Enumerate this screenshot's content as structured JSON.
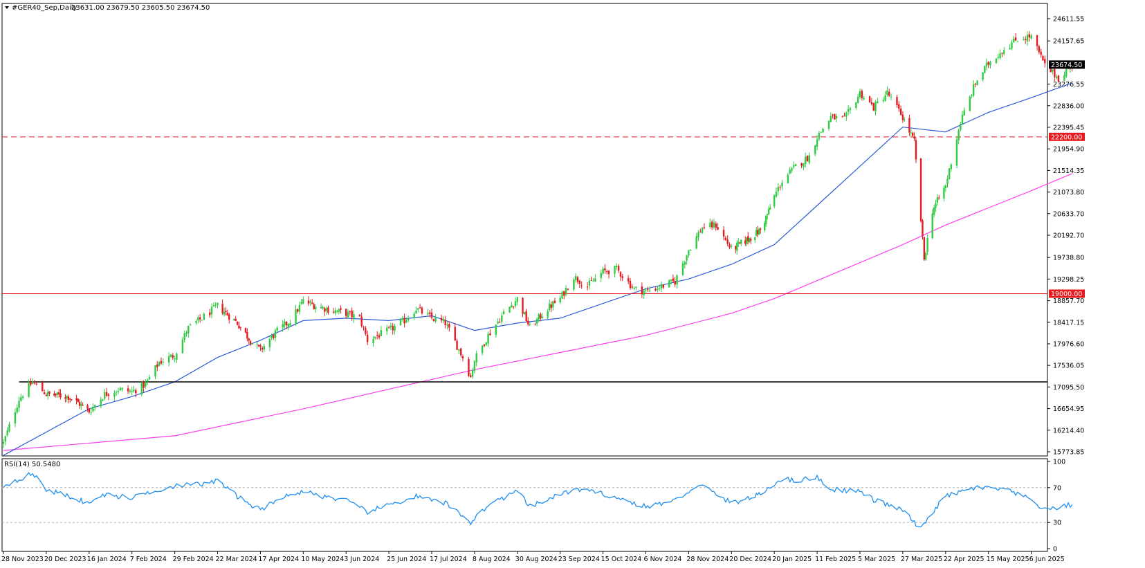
{
  "header": {
    "symbol_title": "#GER40_Sep,Daily",
    "ohlc": "23631.00 23679.50 23605.50 23674.50",
    "menu_icon": "triangle-down-icon"
  },
  "rsi_panel": {
    "label": "RSI(14) 50.5480"
  },
  "price_tags": {
    "last_price": "23674.50",
    "level_22200": "22200.00",
    "level_19000": "19000.00"
  },
  "colors": {
    "bull_candle": "#2ecc40",
    "bear_candle": "#e8191f",
    "ma_fast": "#2d5bd8",
    "ma_slow": "#ff3cf0",
    "rsi_line": "#1e8ff0",
    "hline_red": "#e8191f",
    "hline_black": "#000000",
    "last_tag_bg": "#000000",
    "level_tag_bg": "#e8191f"
  },
  "chart_data": [
    {
      "type": "candlestick",
      "title": "#GER40_Sep,Daily",
      "x_tick_labels": [
        "28 Nov 2023",
        "20 Dec 2023",
        "16 Jan 2024",
        "7 Feb 2024",
        "29 Feb 2024",
        "22 Mar 2024",
        "17 Apr 2024",
        "10 May 2024",
        "3 Jun 2024",
        "25 Jun 2024",
        "17 Jul 2024",
        "8 Aug 2024",
        "30 Aug 2024",
        "23 Sep 2024",
        "15 Oct 2024",
        "6 Nov 2024",
        "28 Nov 2024",
        "20 Dec 2024",
        "20 Jan 2025",
        "11 Feb 2025",
        "5 Mar 2025",
        "27 Mar 2025",
        "22 Apr 2025",
        "15 May 2025",
        "6 Jun 2025"
      ],
      "y_tick_labels": [
        "24611.55",
        "24157.65",
        "23276.55",
        "22836.00",
        "22395.45",
        "21954.90",
        "21514.35",
        "21073.80",
        "20633.70",
        "20192.70",
        "19738.80",
        "19298.25",
        "18857.70",
        "18417.15",
        "17976.60",
        "17536.05",
        "17095.50",
        "16654.95",
        "16214.40",
        "15773.85"
      ],
      "ylim": [
        15773.85,
        24850
      ],
      "close_path": [
        [
          "28 Nov 2023",
          15950
        ],
        [
          "6 Dec 2023",
          16850
        ],
        [
          "13 Dec 2023",
          17200
        ],
        [
          "20 Dec 2023",
          16950
        ],
        [
          "3 Jan 2024",
          16900
        ],
        [
          "10 Jan 2024",
          16750
        ],
        [
          "16 Jan 2024",
          16600
        ],
        [
          "24 Jan 2024",
          16950
        ],
        [
          "31 Jan 2024",
          17050
        ],
        [
          "7 Feb 2024",
          17000
        ],
        [
          "14 Feb 2024",
          17150
        ],
        [
          "21 Feb 2024",
          17600
        ],
        [
          "29 Feb 2024",
          17750
        ],
        [
          "7 Mar 2024",
          18300
        ],
        [
          "14 Mar 2024",
          18500
        ],
        [
          "22 Mar 2024",
          18750
        ],
        [
          "3 Apr 2024",
          18400
        ],
        [
          "12 Apr 2024",
          18000
        ],
        [
          "17 Apr 2024",
          17850
        ],
        [
          "25 Apr 2024",
          18200
        ],
        [
          "3 May 2024",
          18450
        ],
        [
          "10 May 2024",
          18850
        ],
        [
          "17 May 2024",
          18750
        ],
        [
          "27 May 2024",
          18650
        ],
        [
          "3 Jun 2024",
          18600
        ],
        [
          "10 Jun 2024",
          18500
        ],
        [
          "14 Jun 2024",
          18050
        ],
        [
          "25 Jun 2024",
          18250
        ],
        [
          "3 Jul 2024",
          18450
        ],
        [
          "9 Jul 2024",
          18700
        ],
        [
          "17 Jul 2024",
          18500
        ],
        [
          "24 Jul 2024",
          18400
        ],
        [
          "2 Aug 2024",
          17700
        ],
        [
          "6 Aug 2024",
          17300
        ],
        [
          "8 Aug 2024",
          17650
        ],
        [
          "15 Aug 2024",
          18150
        ],
        [
          "23 Aug 2024",
          18600
        ],
        [
          "30 Aug 2024",
          18900
        ],
        [
          "6 Sep 2024",
          18300
        ],
        [
          "16 Sep 2024",
          18700
        ],
        [
          "23 Sep 2024",
          18900
        ],
        [
          "30 Sep 2024",
          19350
        ],
        [
          "7 Oct 2024",
          19150
        ],
        [
          "15 Oct 2024",
          19450
        ],
        [
          "22 Oct 2024",
          19500
        ],
        [
          "31 Oct 2024",
          19100
        ],
        [
          "6 Nov 2024",
          19050
        ],
        [
          "14 Nov 2024",
          19150
        ],
        [
          "21 Nov 2024",
          19250
        ],
        [
          "28 Nov 2024",
          19900
        ],
        [
          "5 Dec 2024",
          20350
        ],
        [
          "12 Dec 2024",
          20400
        ],
        [
          "20 Dec 2024",
          19900
        ],
        [
          "3 Jan 2025",
          20150
        ],
        [
          "10 Jan 2025",
          20300
        ],
        [
          "17 Jan 2025",
          20750
        ],
        [
          "24 Jan 2025",
          21300
        ],
        [
          "31 Jan 2025",
          21600
        ],
        [
          "7 Feb 2025",
          21800
        ],
        [
          "11 Feb 2025",
          22200
        ],
        [
          "18 Feb 2025",
          22600
        ],
        [
          "25 Feb 2025",
          22550
        ],
        [
          "5 Mar 2025",
          23100
        ],
        [
          "12 Mar 2025",
          22800
        ],
        [
          "19 Mar 2025",
          23100
        ],
        [
          "27 Mar 2025",
          22600
        ],
        [
          "3 Apr 2025",
          22100
        ],
        [
          "7 Apr 2025",
          20500
        ],
        [
          "9 Apr 2025",
          19700
        ],
        [
          "14 Apr 2025",
          20700
        ],
        [
          "22 Apr 2025",
          21200
        ],
        [
          "30 Apr 2025",
          22500
        ],
        [
          "8 May 2025",
          23300
        ],
        [
          "15 May 2025",
          23700
        ],
        [
          "23 May 2025",
          24000
        ],
        [
          "30 May 2025",
          24200
        ],
        [
          "6 Jun 2025",
          24250
        ],
        [
          "13 Jun 2025",
          23650
        ],
        [
          "20 Jun 2025",
          23400
        ],
        [
          "27 Jun 2025",
          23674.5
        ]
      ],
      "ma_fast_path": [
        [
          "28 Nov 2023",
          15700
        ],
        [
          "16 Jan 2024",
          16650
        ],
        [
          "7 Feb 2024",
          16900
        ],
        [
          "29 Feb 2024",
          17200
        ],
        [
          "22 Mar 2024",
          17700
        ],
        [
          "17 Apr 2024",
          18050
        ],
        [
          "10 May 2024",
          18450
        ],
        [
          "3 Jun 2024",
          18500
        ],
        [
          "25 Jun 2024",
          18450
        ],
        [
          "17 Jul 2024",
          18550
        ],
        [
          "8 Aug 2024",
          18250
        ],
        [
          "30 Aug 2024",
          18400
        ],
        [
          "23 Sep 2024",
          18500
        ],
        [
          "15 Oct 2024",
          18800
        ],
        [
          "6 Nov 2024",
          19100
        ],
        [
          "28 Nov 2024",
          19300
        ],
        [
          "20 Dec 2024",
          19600
        ],
        [
          "20 Jan 2025",
          20000
        ],
        [
          "11 Feb 2025",
          20800
        ],
        [
          "5 Mar 2025",
          21600
        ],
        [
          "27 Mar 2025",
          22400
        ],
        [
          "22 Apr 2025",
          22300
        ],
        [
          "15 May 2025",
          22700
        ],
        [
          "6 Jun 2025",
          23000
        ],
        [
          "27 Jun 2025",
          23300
        ]
      ],
      "ma_slow_path": [
        [
          "28 Nov 2023",
          15800
        ],
        [
          "16 Jan 2024",
          15950
        ],
        [
          "29 Feb 2024",
          16100
        ],
        [
          "10 May 2024",
          16650
        ],
        [
          "25 Jun 2024",
          17050
        ],
        [
          "8 Aug 2024",
          17450
        ],
        [
          "23 Sep 2024",
          17800
        ],
        [
          "6 Nov 2024",
          18150
        ],
        [
          "20 Dec 2024",
          18600
        ],
        [
          "20 Jan 2025",
          18900
        ],
        [
          "27 Mar 2025",
          20000
        ],
        [
          "22 Apr 2025",
          20400
        ],
        [
          "15 May 2025",
          20750
        ],
        [
          "6 Jun 2025",
          21100
        ],
        [
          "27 Jun 2025",
          21450
        ]
      ],
      "horizontal_levels": [
        {
          "value": 22200.0,
          "style": "dashed",
          "color": "red"
        },
        {
          "value": 19000.0,
          "style": "solid",
          "color": "red"
        },
        {
          "value": 17200.0,
          "style": "solid",
          "color": "black",
          "from": "6 Dec 2023"
        }
      ],
      "last_value": 23674.5
    },
    {
      "type": "line",
      "title": "RSI(14) 50.5480",
      "y_tick_labels": [
        "100",
        "70",
        "30",
        "0"
      ],
      "ylim": [
        0,
        100
      ],
      "reference_levels": [
        70,
        30
      ],
      "rsi_path": [
        [
          "28 Nov 2023",
          72
        ],
        [
          "6 Dec 2023",
          80
        ],
        [
          "13 Dec 2023",
          86
        ],
        [
          "20 Dec 2023",
          68
        ],
        [
          "3 Jan 2024",
          60
        ],
        [
          "16 Jan 2024",
          52
        ],
        [
          "24 Jan 2024",
          62
        ],
        [
          "7 Feb 2024",
          58
        ],
        [
          "14 Feb 2024",
          64
        ],
        [
          "29 Feb 2024",
          72
        ],
        [
          "14 Mar 2024",
          74
        ],
        [
          "22 Mar 2024",
          78
        ],
        [
          "3 Apr 2024",
          60
        ],
        [
          "17 Apr 2024",
          44
        ],
        [
          "25 Apr 2024",
          56
        ],
        [
          "10 May 2024",
          66
        ],
        [
          "17 May 2024",
          62
        ],
        [
          "3 Jun 2024",
          55
        ],
        [
          "14 Jun 2024",
          42
        ],
        [
          "25 Jun 2024",
          50
        ],
        [
          "9 Jul 2024",
          60
        ],
        [
          "17 Jul 2024",
          55
        ],
        [
          "24 Jul 2024",
          52
        ],
        [
          "2 Aug 2024",
          38
        ],
        [
          "6 Aug 2024",
          30
        ],
        [
          "15 Aug 2024",
          50
        ],
        [
          "30 Aug 2024",
          66
        ],
        [
          "6 Sep 2024",
          48
        ],
        [
          "23 Sep 2024",
          62
        ],
        [
          "30 Sep 2024",
          68
        ],
        [
          "15 Oct 2024",
          63
        ],
        [
          "31 Oct 2024",
          52
        ],
        [
          "6 Nov 2024",
          48
        ],
        [
          "21 Nov 2024",
          55
        ],
        [
          "28 Nov 2024",
          66
        ],
        [
          "5 Dec 2024",
          72
        ],
        [
          "20 Dec 2024",
          52
        ],
        [
          "10 Jan 2025",
          62
        ],
        [
          "24 Jan 2025",
          80
        ],
        [
          "31 Jan 2025",
          78
        ],
        [
          "11 Feb 2025",
          82
        ],
        [
          "18 Feb 2025",
          68
        ],
        [
          "5 Mar 2025",
          66
        ],
        [
          "12 Mar 2025",
          56
        ],
        [
          "27 Mar 2025",
          44
        ],
        [
          "7 Apr 2025",
          22
        ],
        [
          "14 Apr 2025",
          42
        ],
        [
          "22 Apr 2025",
          60
        ],
        [
          "8 May 2025",
          70
        ],
        [
          "23 May 2025",
          68
        ],
        [
          "6 Jun 2025",
          56
        ],
        [
          "13 Jun 2025",
          44
        ],
        [
          "27 Jun 2025",
          50.548
        ]
      ]
    }
  ]
}
